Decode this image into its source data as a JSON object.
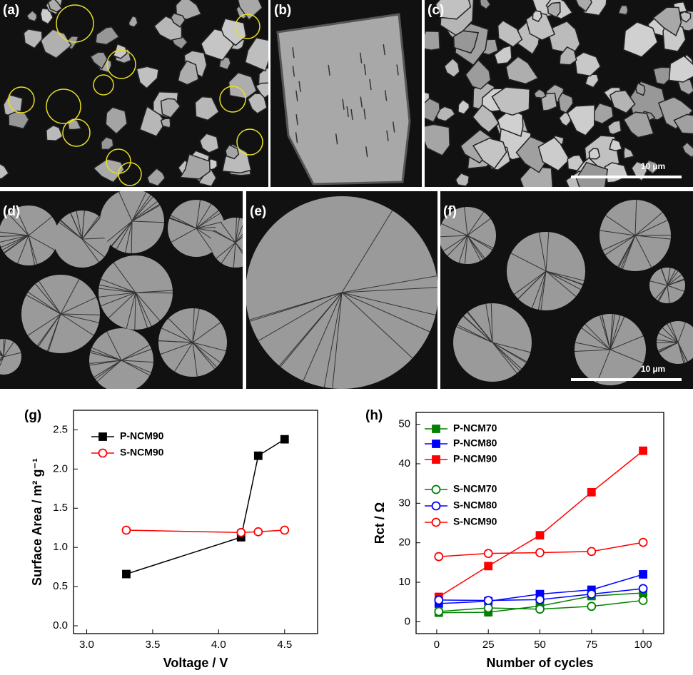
{
  "panels": [
    "(a)",
    "(b)",
    "(c)",
    "(d)",
    "(e)",
    "(f)"
  ],
  "scale_bars": [
    "10 µm",
    "10 µm"
  ],
  "chart_data": [
    {
      "type": "line",
      "panel": "(g)",
      "x_label": "Voltage / V",
      "y_label": "Surface Area / m² g⁻¹",
      "x": [
        3.3,
        4.17,
        4.3,
        4.5
      ],
      "series": [
        {
          "name": "P-NCM90",
          "color": "#000000",
          "marker": "square",
          "filled": true,
          "values": [
            0.66,
            1.13,
            2.17,
            2.38
          ]
        },
        {
          "name": "S-NCM90",
          "color": "#ff0000",
          "marker": "circle",
          "filled": false,
          "values": [
            1.22,
            1.19,
            1.2,
            1.22
          ]
        }
      ],
      "xlim": [
        2.9,
        4.75
      ],
      "xticks": [
        {
          "value": 3,
          "label": "3.0"
        },
        3.5,
        {
          "value": 4,
          "label": "4.0"
        },
        4.5
      ],
      "ylim": [
        -0.1,
        2.75
      ],
      "yticks": [
        {
          "value": 0,
          "label": "0.0"
        },
        0.5,
        {
          "value": 1,
          "label": "1.0"
        },
        1.5,
        {
          "value": 2,
          "label": "2.0"
        },
        2.5
      ],
      "legend": "top-left"
    },
    {
      "type": "line",
      "panel": "(h)",
      "x_label": "Number of cycles",
      "y_label": "Rct / Ω",
      "x": [
        1,
        25,
        50,
        75,
        100
      ],
      "series": [
        {
          "name": "P-NCM70",
          "color": "#008000",
          "marker": "square",
          "filled": true,
          "values": [
            2.3,
            2.4,
            4,
            6.5,
            7.3
          ]
        },
        {
          "name": "P-NCM80",
          "color": "#0000ff",
          "marker": "square",
          "filled": true,
          "values": [
            4.6,
            5.2,
            7,
            8.1,
            12
          ]
        },
        {
          "name": "P-NCM90",
          "color": "#ff0000",
          "marker": "square",
          "filled": true,
          "values": [
            6.3,
            14.1,
            21.9,
            32.8,
            43.3
          ]
        },
        {
          "name": "S-NCM70",
          "color": "#008000",
          "marker": "circle",
          "filled": false,
          "values": [
            2.6,
            3.5,
            3.2,
            3.9,
            5.4
          ]
        },
        {
          "name": "S-NCM80",
          "color": "#0000ff",
          "marker": "circle",
          "filled": false,
          "values": [
            5.5,
            5.4,
            5.6,
            7,
            8.4
          ]
        },
        {
          "name": "S-NCM90",
          "color": "#ff0000",
          "marker": "circle",
          "filled": false,
          "values": [
            16.5,
            17.3,
            17.5,
            17.8,
            20.1
          ]
        }
      ],
      "xlim": [
        -10,
        110
      ],
      "xticks": [
        0,
        25,
        50,
        75,
        100
      ],
      "ylim": [
        -3,
        53
      ],
      "yticks": [
        0,
        10,
        20,
        30,
        40,
        50
      ],
      "legend": "top-left"
    }
  ]
}
